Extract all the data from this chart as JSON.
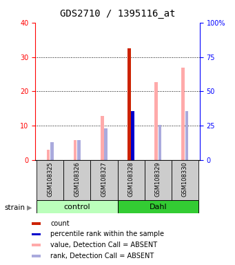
{
  "title": "GDS2710 / 1395116_at",
  "samples": [
    "GSM108325",
    "GSM108326",
    "GSM108327",
    "GSM108328",
    "GSM108329",
    "GSM108330"
  ],
  "ylim_left": [
    0,
    40
  ],
  "ylim_right": [
    0,
    100
  ],
  "yticks_left": [
    0,
    10,
    20,
    30,
    40
  ],
  "yticks_right": [
    0,
    25,
    50,
    75,
    100
  ],
  "ytick_labels_right": [
    "0",
    "25",
    "50",
    "75",
    "100%"
  ],
  "count_values": [
    0,
    0,
    0,
    32.5,
    0,
    0
  ],
  "percentile_values": [
    0,
    0,
    0,
    14.2,
    0,
    0
  ],
  "value_absent": [
    3.0,
    5.8,
    12.8,
    14.0,
    22.8,
    27.0
  ],
  "rank_absent": [
    5.2,
    5.8,
    9.2,
    0,
    10.2,
    14.2
  ],
  "color_count": "#cc2200",
  "color_percentile": "#0000cc",
  "color_value_absent": "#ffaaaa",
  "color_rank_absent": "#aaaadd",
  "legend_items": [
    {
      "label": "count",
      "color": "#cc2200"
    },
    {
      "label": "percentile rank within the sample",
      "color": "#0000cc"
    },
    {
      "label": "value, Detection Call = ABSENT",
      "color": "#ffaaaa"
    },
    {
      "label": "rank, Detection Call = ABSENT",
      "color": "#aaaadd"
    }
  ],
  "group_bg_light": "#bbffbb",
  "group_bg_dark": "#33cc33",
  "strain_label": "strain",
  "title_fontsize": 10,
  "tick_fontsize": 7,
  "sample_fontsize": 6,
  "group_fontsize": 8,
  "legend_fontsize": 7
}
